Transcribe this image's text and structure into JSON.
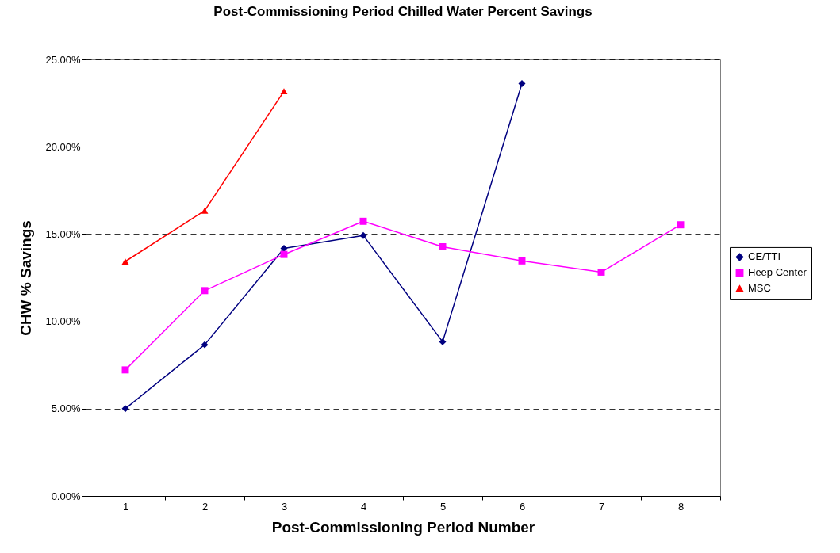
{
  "chart_data": {
    "type": "line",
    "title": "Post-Commissioning Period Chilled Water Percent Savings",
    "xlabel": "Post-Commissioning Period Number",
    "ylabel": "CHW % Savings",
    "categories": [
      "1",
      "2",
      "3",
      "4",
      "5",
      "6",
      "7",
      "8"
    ],
    "series": [
      {
        "name": "CE/TTI",
        "color": "#000080",
        "marker": "diamond",
        "values": [
          5.0,
          8.66,
          14.18,
          14.92,
          8.83,
          23.62,
          null,
          null
        ]
      },
      {
        "name": "Heep Center",
        "color": "#ff00ff",
        "marker": "square",
        "values": [
          7.22,
          11.76,
          13.83,
          15.73,
          14.27,
          13.46,
          12.82,
          15.53
        ]
      },
      {
        "name": "MSC",
        "color": "#ff0000",
        "marker": "triangle",
        "values": [
          13.43,
          16.34,
          23.18,
          null,
          null,
          null,
          null,
          null
        ]
      }
    ],
    "ylim": [
      0,
      25
    ],
    "yticks": [
      {
        "value": 0,
        "label": "0.00%"
      },
      {
        "value": 5,
        "label": "5.00%"
      },
      {
        "value": 10,
        "label": "10.00%"
      },
      {
        "value": 15,
        "label": "15.00%"
      },
      {
        "value": 20,
        "label": "20.00%"
      },
      {
        "value": 25,
        "label": "25.00%"
      }
    ],
    "grid": "y",
    "legend": "right",
    "line_style": "solid"
  }
}
